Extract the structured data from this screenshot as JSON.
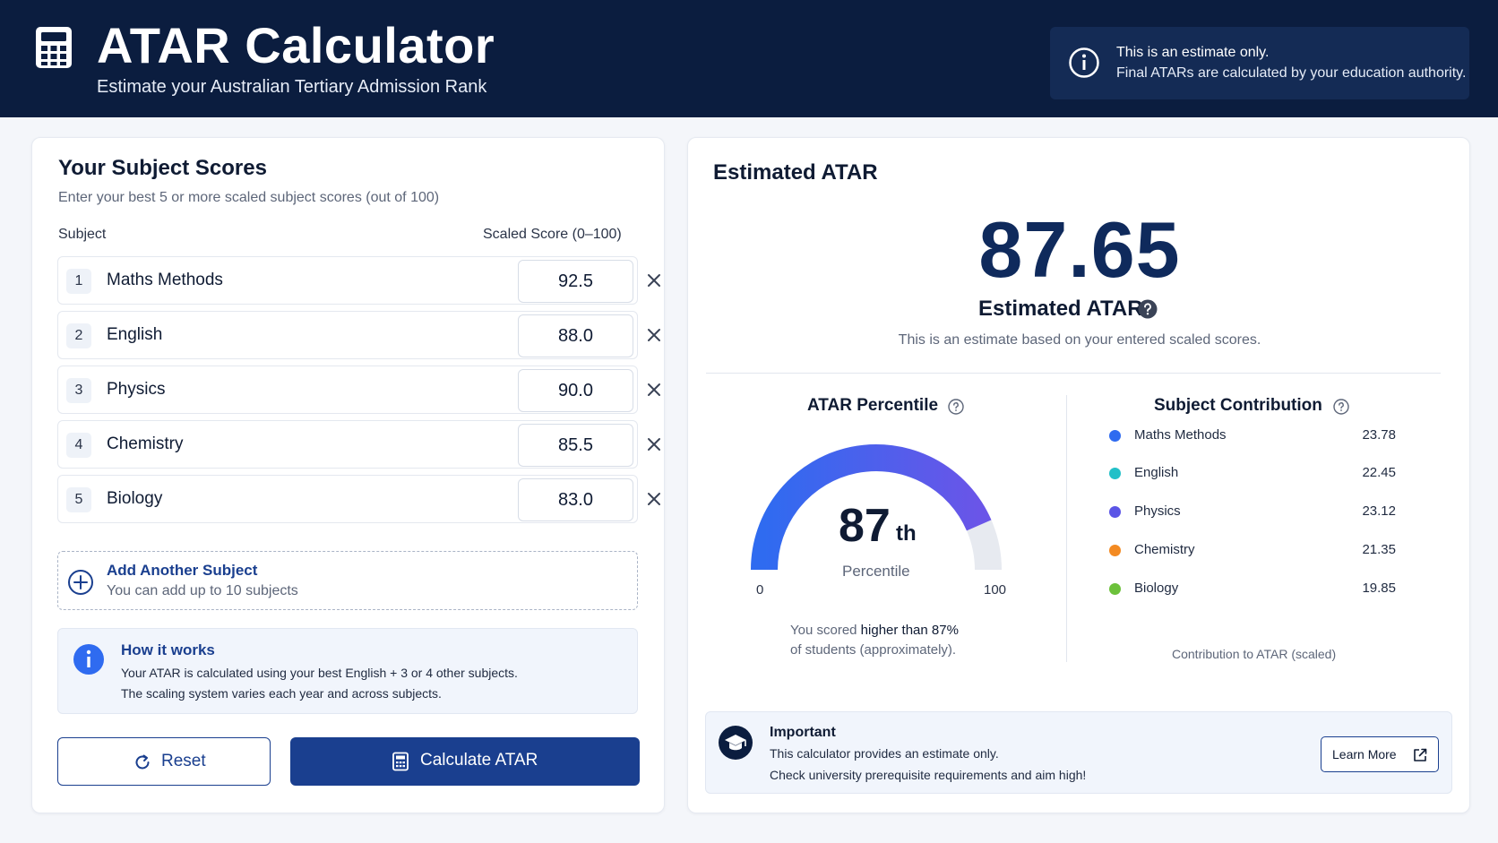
{
  "header": {
    "title": "ATAR Calculator",
    "subtitle": "Estimate your Australian Tertiary Admission Rank",
    "notice_line1": "This is an estimate only.",
    "notice_line2": "Final ATARs are calculated by your education authority."
  },
  "scores_panel": {
    "title": "Your Subject Scores",
    "subtitle": "Enter your best 5 or more scaled subject scores (out of 100)",
    "col_subject": "Subject",
    "col_score": "Scaled Score (0–100)",
    "rows": [
      {
        "num": "1",
        "name": "Maths Methods",
        "score": "92.5"
      },
      {
        "num": "2",
        "name": "English",
        "score": "88.0"
      },
      {
        "num": "3",
        "name": "Physics",
        "score": "90.0"
      },
      {
        "num": "4",
        "name": "Chemistry",
        "score": "85.5"
      },
      {
        "num": "5",
        "name": "Biology",
        "score": "83.0"
      }
    ],
    "add_label": "Add Another Subject",
    "add_hint": "You can add up to 10 subjects",
    "how_title": "How it works",
    "how_line1": "Your ATAR is calculated using your best English + 3 or 4 other subjects.",
    "how_line2": "The scaling system varies each year and across subjects.",
    "reset_label": "Reset",
    "calc_label": "Calculate ATAR"
  },
  "result_panel": {
    "title": "Estimated ATAR",
    "atar_value": "87.65",
    "atar_label": "Estimated ATAR",
    "atar_note": "This is an estimate based on your entered scaled scores.",
    "percentile": {
      "title": "ATAR Percentile",
      "value": "87",
      "suffix": "th",
      "label": "Percentile",
      "min": "0",
      "max": "100",
      "fraction": 0.87,
      "text_prefix": "You scored ",
      "text_bold": "higher than 87%",
      "text_line2": "of students (approximately)."
    },
    "contribution": {
      "title": "Subject Contribution",
      "items": [
        {
          "name": "Maths Methods",
          "value": "23.78",
          "color": "#2f6bf0"
        },
        {
          "name": "English",
          "value": "22.45",
          "color": "#22c0c8"
        },
        {
          "name": "Physics",
          "value": "23.12",
          "color": "#5b55e6"
        },
        {
          "name": "Chemistry",
          "value": "21.35",
          "color": "#f38a22"
        },
        {
          "name": "Biology",
          "value": "19.85",
          "color": "#6cc13b"
        }
      ],
      "footer": "Contribution to ATAR (scaled)"
    },
    "important": {
      "title": "Important",
      "line1": "This calculator provides an estimate only.",
      "line2": "Check university prerequisite requirements and aim high!",
      "button": "Learn More"
    }
  },
  "colors": {
    "header_bg": "#0b1d3f",
    "accent": "#1a3f8f",
    "gauge_start": "#2f6bf0",
    "gauge_end": "#6a55e8"
  },
  "icons": {
    "app": "calculator-icon",
    "notice": "info-circle-icon",
    "remove": "close-icon",
    "add": "plus-circle-icon",
    "how": "info-icon",
    "reset": "refresh-icon",
    "calculate": "calculator-icon",
    "help": "question-circle-icon",
    "important": "graduation-cap-icon",
    "external": "external-link-icon"
  }
}
